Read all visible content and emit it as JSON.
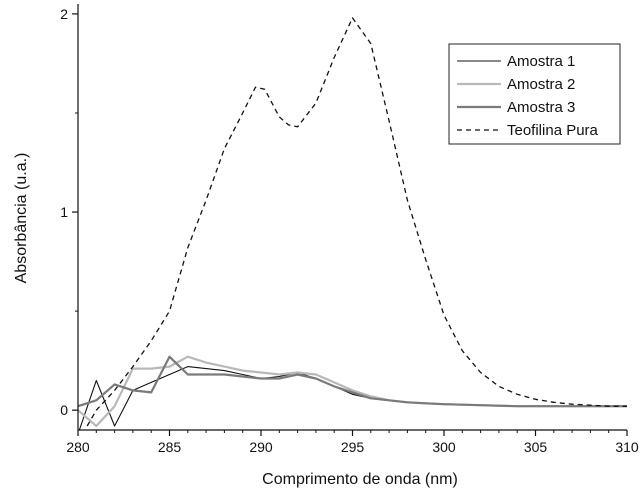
{
  "chart_data": {
    "type": "line",
    "xlabel": "Comprimento de onda (nm)",
    "ylabel": "Absorbância (u.a.)",
    "xlim": [
      280,
      310
    ],
    "ylim": [
      -0.1,
      2.05
    ],
    "xticks": [
      280,
      285,
      290,
      295,
      300,
      305,
      310
    ],
    "yticks": [
      0,
      1,
      2
    ],
    "grid": false,
    "legend_position": "top-right",
    "series": [
      {
        "name": "Amostra 1",
        "color": "#111111",
        "dash": "solid",
        "x": [
          280,
          281,
          282,
          283,
          284,
          285,
          286,
          287,
          288,
          289,
          290,
          291,
          292,
          293,
          294,
          295,
          296,
          297,
          298,
          299,
          300,
          302,
          304,
          306,
          308,
          310
        ],
        "y": [
          -0.12,
          0.15,
          -0.08,
          0.1,
          0.14,
          0.18,
          0.22,
          0.21,
          0.2,
          0.18,
          0.16,
          0.17,
          0.19,
          0.16,
          0.12,
          0.08,
          0.06,
          0.05,
          0.04,
          0.035,
          0.03,
          0.025,
          0.02,
          0.02,
          0.02,
          0.02
        ]
      },
      {
        "name": "Amostra 2",
        "color": "#b8b8b8",
        "dash": "solid",
        "x": [
          280,
          281,
          282,
          283,
          284,
          285,
          286,
          287,
          288,
          289,
          290,
          291,
          292,
          293,
          294,
          295,
          296,
          297,
          298,
          299,
          300,
          302,
          304,
          306,
          308,
          310
        ],
        "y": [
          0.0,
          -0.08,
          0.02,
          0.21,
          0.21,
          0.22,
          0.27,
          0.24,
          0.22,
          0.2,
          0.19,
          0.18,
          0.19,
          0.18,
          0.14,
          0.1,
          0.07,
          0.05,
          0.04,
          0.035,
          0.03,
          0.025,
          0.02,
          0.02,
          0.02,
          0.02
        ]
      },
      {
        "name": "Amostra 3",
        "color": "#7a7a7a",
        "dash": "solid",
        "x": [
          280,
          281,
          282,
          283,
          284,
          285,
          286,
          287,
          288,
          289,
          290,
          291,
          292,
          293,
          294,
          295,
          296,
          297,
          298,
          299,
          300,
          302,
          304,
          306,
          308,
          310
        ],
        "y": [
          0.02,
          0.05,
          0.13,
          0.1,
          0.09,
          0.27,
          0.18,
          0.18,
          0.18,
          0.17,
          0.16,
          0.16,
          0.18,
          0.16,
          0.12,
          0.09,
          0.06,
          0.05,
          0.04,
          0.035,
          0.03,
          0.025,
          0.02,
          0.02,
          0.02,
          0.02
        ]
      },
      {
        "name": "Teofilina Pura",
        "color": "#111111",
        "dash": "dashed",
        "x": [
          280.5,
          281,
          282,
          283,
          284,
          285,
          286,
          287,
          288,
          289,
          289.7,
          290.2,
          291,
          291.5,
          292,
          293,
          294,
          295,
          296,
          297,
          298,
          299,
          300,
          301,
          302,
          303,
          304,
          305,
          306,
          307,
          308,
          309,
          310
        ],
        "y": [
          -0.08,
          0.0,
          0.1,
          0.22,
          0.35,
          0.5,
          0.82,
          1.06,
          1.32,
          1.5,
          1.63,
          1.62,
          1.48,
          1.44,
          1.43,
          1.55,
          1.78,
          1.98,
          1.85,
          1.46,
          1.06,
          0.76,
          0.48,
          0.3,
          0.19,
          0.12,
          0.08,
          0.055,
          0.04,
          0.03,
          0.025,
          0.02,
          0.02
        ]
      }
    ]
  }
}
